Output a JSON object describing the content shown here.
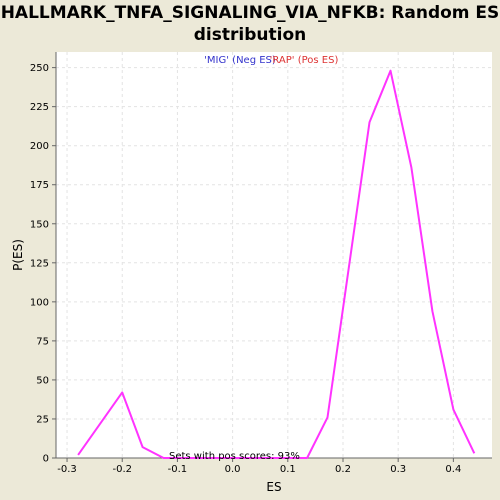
{
  "title_line1": "HALLMARK_TNFA_SIGNALING_VIA_NFKB: Random ES",
  "title_line2": "distribution",
  "legend": {
    "neg": {
      "text": "'MIG' (Neg ES)",
      "color": "#3333CC"
    },
    "pos": {
      "text": "'RAP' (Pos ES)",
      "color": "#DD3333"
    }
  },
  "annotation": "Sets with pos scores: 93%",
  "colors": {
    "line": "#FF33FF",
    "plot_bg": "#FFFFFF",
    "grid": "#E3E3E3",
    "page_bg": "#ECE9D8"
  },
  "chart_data": {
    "type": "line",
    "xlabel": "ES",
    "ylabel": "P(ES)",
    "xlim": [
      -0.32,
      0.47
    ],
    "ylim": [
      0,
      260
    ],
    "xticks": [
      -0.3,
      -0.2,
      -0.1,
      0.0,
      0.1,
      0.2,
      0.3,
      0.4
    ],
    "xtick_labels": [
      "-0.3",
      "-0.2",
      "-0.1",
      "0.0",
      "0.1",
      "0.2",
      "0.3",
      "0.4"
    ],
    "yticks": [
      0,
      25,
      50,
      75,
      100,
      125,
      150,
      175,
      200,
      225,
      250
    ],
    "ytick_labels": [
      "0",
      "25",
      "50",
      "75",
      "100",
      "125",
      "150",
      "175",
      "200",
      "225",
      "250"
    ],
    "grid": true,
    "series": [
      {
        "x": [
          -0.28,
          -0.2,
          -0.163,
          -0.125,
          -0.087,
          0.135,
          0.172,
          0.248,
          0.286,
          0.324,
          0.362,
          0.4,
          0.438
        ],
        "y": [
          2,
          42,
          7,
          0,
          0,
          0,
          26,
          215,
          248,
          186,
          94,
          31,
          3
        ]
      }
    ]
  }
}
